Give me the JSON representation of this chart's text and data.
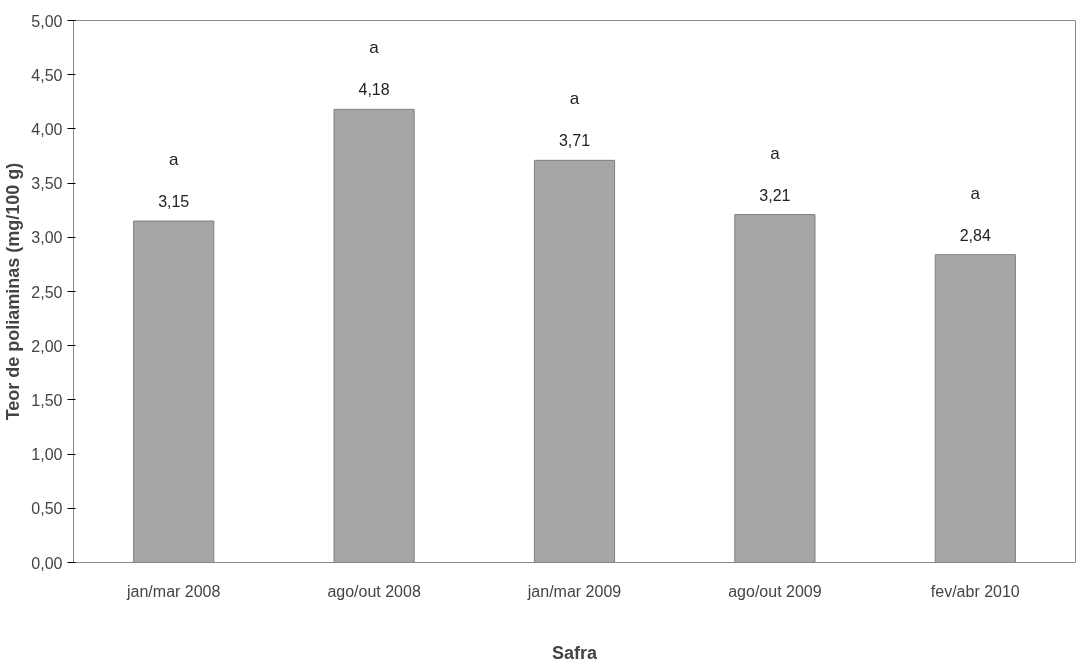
{
  "chart_data": {
    "type": "bar",
    "xlabel": "Safra",
    "ylabel": "Teor de poliaminas (mg/100 g)",
    "categories": [
      "jan/mar 2008",
      "ago/out 2008",
      "jan/mar 2009",
      "ago/out 2009",
      "fev/abr 2010"
    ],
    "values": [
      3.15,
      4.18,
      3.71,
      3.21,
      2.84
    ],
    "color": "#a6a6a6",
    "value_labels": [
      "3,15",
      "4,18",
      "3,71",
      "3,21",
      "2,84"
    ],
    "ylim": [
      0,
      5
    ],
    "yticks": [
      {
        "value": 0,
        "label": "0,00"
      },
      {
        "value": 0.5,
        "label": "0,50"
      },
      {
        "value": 1,
        "label": "1,00"
      },
      {
        "value": 1.5,
        "label": "1,50"
      },
      {
        "value": 2,
        "label": "2,00"
      },
      {
        "value": 2.5,
        "label": "2,50"
      },
      {
        "value": 3,
        "label": "3,00"
      },
      {
        "value": 3.5,
        "label": "3,50"
      },
      {
        "value": 4,
        "label": "4,00"
      },
      {
        "value": 4.5,
        "label": "4,50"
      },
      {
        "value": 5,
        "label": "5,00"
      }
    ],
    "annotations": [
      "a",
      "a",
      "a",
      "a",
      "a"
    ],
    "grid": false
  }
}
